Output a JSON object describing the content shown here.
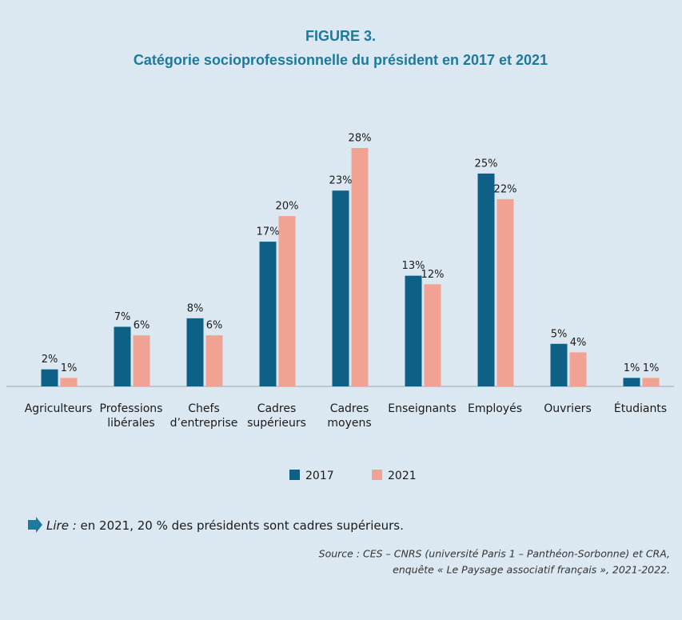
{
  "chart_data": {
    "type": "bar",
    "title": "FIGURE 3.",
    "subtitle": "Catégorie socioprofessionnelle du président en 2017 et 2021",
    "categories": [
      "Agriculteurs",
      "Professions libérales",
      "Chefs d’entreprise",
      "Cadres supérieurs",
      "Cadres moyens",
      "Enseignants",
      "Employés",
      "Ouvriers",
      "Étudiants"
    ],
    "series": [
      {
        "name": "2017",
        "color": "#0f6086",
        "values": [
          2,
          7,
          8,
          17,
          23,
          13,
          25,
          5,
          1
        ],
        "value_labels": [
          "2%",
          "7%",
          "8%",
          "17%",
          "23%",
          "13%",
          "25%",
          "5%",
          "1%"
        ]
      },
      {
        "name": "2021",
        "color": "#f0a393",
        "values": [
          1,
          6,
          6,
          20,
          28,
          12,
          22,
          4,
          1
        ],
        "value_labels": [
          "1%",
          "6%",
          "6%",
          "20%",
          "28%",
          "12%",
          "22%",
          "4%",
          "1%"
        ]
      }
    ],
    "legend": "bottom",
    "note": {
      "lead": "Lire :",
      "text": " en 2021, 20 % des présidents sont cadres supérieurs."
    },
    "source": [
      "Source : CES – CNRS (université Paris 1 – Panthéon-Sorbonne) et CRA,",
      "enquête « Le Paysage associatif français », 2021-2022."
    ]
  }
}
